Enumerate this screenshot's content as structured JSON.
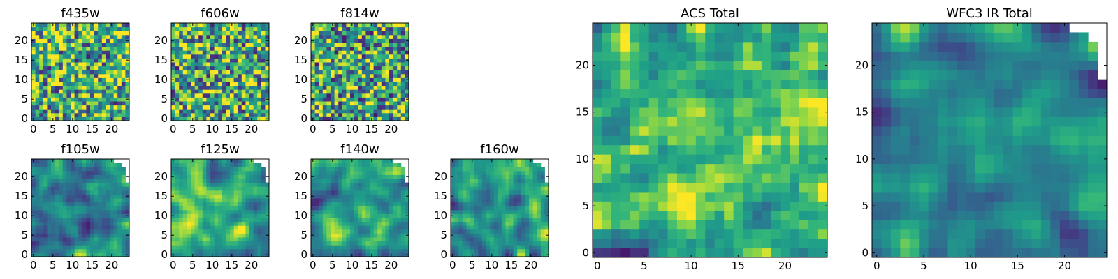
{
  "chart_data": [
    {
      "type": "heatmap",
      "title": "f435w",
      "grid": [
        25,
        25
      ],
      "xlim": [
        0,
        24
      ],
      "ylim": [
        0,
        24
      ],
      "xticks": [
        0,
        5,
        10,
        15,
        20
      ],
      "yticks": [
        0,
        5,
        10,
        15,
        20
      ],
      "missing_corner": false,
      "colormap": "viridis",
      "contrast": "high",
      "tone_bias": 0.72,
      "smoothness": 0.1,
      "seed": 11,
      "xtick_labels": [
        "0",
        "5",
        "10",
        "15",
        "20"
      ],
      "ytick_labels": [
        "0",
        "5",
        "10",
        "15",
        "20"
      ]
    },
    {
      "type": "heatmap",
      "title": "f606w",
      "grid": [
        25,
        25
      ],
      "xlim": [
        0,
        24
      ],
      "ylim": [
        0,
        24
      ],
      "xticks": [
        0,
        5,
        10,
        15,
        20
      ],
      "yticks": [
        0,
        5,
        10,
        15,
        20
      ],
      "missing_corner": false,
      "colormap": "viridis",
      "contrast": "high",
      "tone_bias": 0.7,
      "smoothness": 0.1,
      "seed": 23,
      "xtick_labels": [
        "0",
        "5",
        "10",
        "15",
        "20"
      ],
      "ytick_labels": [
        "0",
        "5",
        "10",
        "15",
        "20"
      ]
    },
    {
      "type": "heatmap",
      "title": "f814w",
      "grid": [
        25,
        25
      ],
      "xlim": [
        0,
        24
      ],
      "ylim": [
        0,
        24
      ],
      "xticks": [
        0,
        5,
        10,
        15,
        20
      ],
      "yticks": [
        0,
        5,
        10,
        15,
        20
      ],
      "missing_corner": false,
      "colormap": "viridis",
      "contrast": "high",
      "tone_bias": 0.65,
      "smoothness": 0.15,
      "seed": 37,
      "xtick_labels": [
        "0",
        "5",
        "10",
        "15",
        "20"
      ],
      "ytick_labels": [
        "0",
        "5",
        "10",
        "15",
        "20"
      ]
    },
    {
      "type": "heatmap",
      "title": "f105w",
      "grid": [
        25,
        25
      ],
      "xlim": [
        0,
        24
      ],
      "ylim": [
        0,
        24
      ],
      "xticks": [
        0,
        5,
        10,
        15,
        20
      ],
      "yticks": [
        0,
        5,
        10,
        15,
        20
      ],
      "missing_corner": true,
      "colormap": "viridis",
      "contrast": "medium",
      "tone_bias": 0.55,
      "smoothness": 0.6,
      "seed": 41,
      "xtick_labels": [
        "0",
        "5",
        "10",
        "15",
        "20"
      ],
      "ytick_labels": [
        "0",
        "5",
        "10",
        "15",
        "20"
      ]
    },
    {
      "type": "heatmap",
      "title": "f125w",
      "grid": [
        25,
        25
      ],
      "xlim": [
        0,
        24
      ],
      "ylim": [
        0,
        24
      ],
      "xticks": [
        0,
        5,
        10,
        15,
        20
      ],
      "yticks": [
        0,
        5,
        10,
        15,
        20
      ],
      "missing_corner": true,
      "colormap": "viridis",
      "contrast": "medium",
      "tone_bias": 0.72,
      "smoothness": 0.6,
      "seed": 53,
      "xtick_labels": [
        "0",
        "5",
        "10",
        "15",
        "20"
      ],
      "ytick_labels": [
        "0",
        "5",
        "10",
        "15",
        "20"
      ]
    },
    {
      "type": "heatmap",
      "title": "f140w",
      "grid": [
        25,
        25
      ],
      "xlim": [
        0,
        24
      ],
      "ylim": [
        0,
        24
      ],
      "xticks": [
        0,
        5,
        10,
        15,
        20
      ],
      "yticks": [
        0,
        5,
        10,
        15,
        20
      ],
      "missing_corner": true,
      "colormap": "viridis",
      "contrast": "medium",
      "tone_bias": 0.6,
      "smoothness": 0.55,
      "seed": 67,
      "xtick_labels": [
        "0",
        "5",
        "10",
        "15",
        "20"
      ],
      "ytick_labels": [
        "0",
        "5",
        "10",
        "15",
        "20"
      ]
    },
    {
      "type": "heatmap",
      "title": "f160w",
      "grid": [
        25,
        25
      ],
      "xlim": [
        0,
        24
      ],
      "ylim": [
        0,
        24
      ],
      "xticks": [
        0,
        5,
        10,
        15,
        20
      ],
      "yticks": [
        0,
        5,
        10,
        15,
        20
      ],
      "missing_corner": true,
      "colormap": "viridis",
      "contrast": "medium",
      "tone_bias": 0.6,
      "smoothness": 0.55,
      "seed": 79,
      "xtick_labels": [
        "0",
        "5",
        "10",
        "15",
        "20"
      ],
      "ytick_labels": [
        "0",
        "5",
        "10",
        "15",
        "20"
      ]
    },
    {
      "type": "heatmap",
      "title": "ACS Total",
      "grid": [
        25,
        25
      ],
      "xlim": [
        0,
        24
      ],
      "ylim": [
        0,
        24
      ],
      "xticks": [
        0,
        5,
        10,
        15,
        20
      ],
      "yticks": [
        0,
        5,
        10,
        15,
        20
      ],
      "missing_corner": false,
      "colormap": "viridis",
      "contrast": "high",
      "tone_bias": 0.66,
      "smoothness": 0.2,
      "seed": 97,
      "xtick_labels": [
        "0",
        "5",
        "10",
        "15",
        "20"
      ],
      "ytick_labels": [
        "0",
        "5",
        "10",
        "15",
        "20"
      ]
    },
    {
      "type": "heatmap",
      "title": "WFC3 IR Total",
      "grid": [
        25,
        25
      ],
      "xlim": [
        0,
        24
      ],
      "ylim": [
        0,
        24
      ],
      "xticks": [
        0,
        5,
        10,
        15,
        20
      ],
      "yticks": [
        0,
        5,
        10,
        15,
        20
      ],
      "missing_corner": true,
      "colormap": "viridis",
      "contrast": "medium",
      "tone_bias": 0.55,
      "smoothness": 0.75,
      "seed": 113,
      "xtick_labels": [
        "0",
        "5",
        "10",
        "15",
        "20"
      ],
      "ytick_labels": [
        "0",
        "5",
        "10",
        "15",
        "20"
      ]
    }
  ]
}
